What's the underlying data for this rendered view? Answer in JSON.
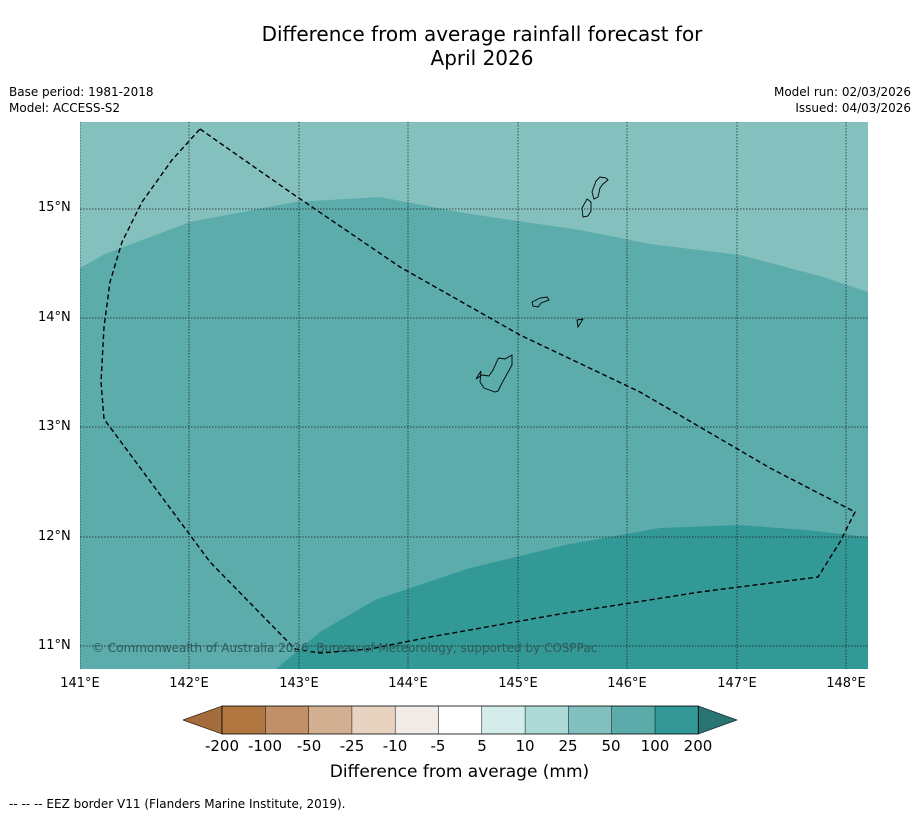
{
  "title_line1": "Difference from average rainfall forecast for",
  "title_line2": "April 2026",
  "meta": {
    "base_period": "Base period: 1981-2018",
    "model": "Model: ACCESS-S2",
    "model_run": "Model run: 02/03/2026",
    "issued": "Issued: 04/03/2026"
  },
  "copyright": "© Commonwealth of Australia 2026, Bureau of Meteorology, supported by COSPPac",
  "latitudes": [
    "15°N",
    "14°N",
    "13°N",
    "12°N",
    "11°N"
  ],
  "longitudes": [
    "141°E",
    "142°E",
    "143°E",
    "144°E",
    "145°E",
    "146°E",
    "147°E",
    "148°E"
  ],
  "colorbar": {
    "ticks": [
      "-200",
      "-100",
      "-50",
      "-25",
      "-10",
      "-5",
      "5",
      "10",
      "25",
      "50",
      "100",
      "200"
    ],
    "colors": [
      "#a46c3b",
      "#b07840",
      "#c09068",
      "#d4b092",
      "#e8d2c0",
      "#f0ebe6",
      "#ffffff",
      "#d4ecea",
      "#acd8d6",
      "#82c0bf",
      "#5aabaa",
      "#339896",
      "#2a7574"
    ],
    "label": "Difference from average (mm)"
  },
  "legend_footer": "--  --  -- EEZ border V11 (Flanders Marine Institute, 2019).",
  "map_colors": {
    "band_25_50": "#84c1be",
    "band_50_100": "#5bacab",
    "band_100_200": "#339997"
  }
}
